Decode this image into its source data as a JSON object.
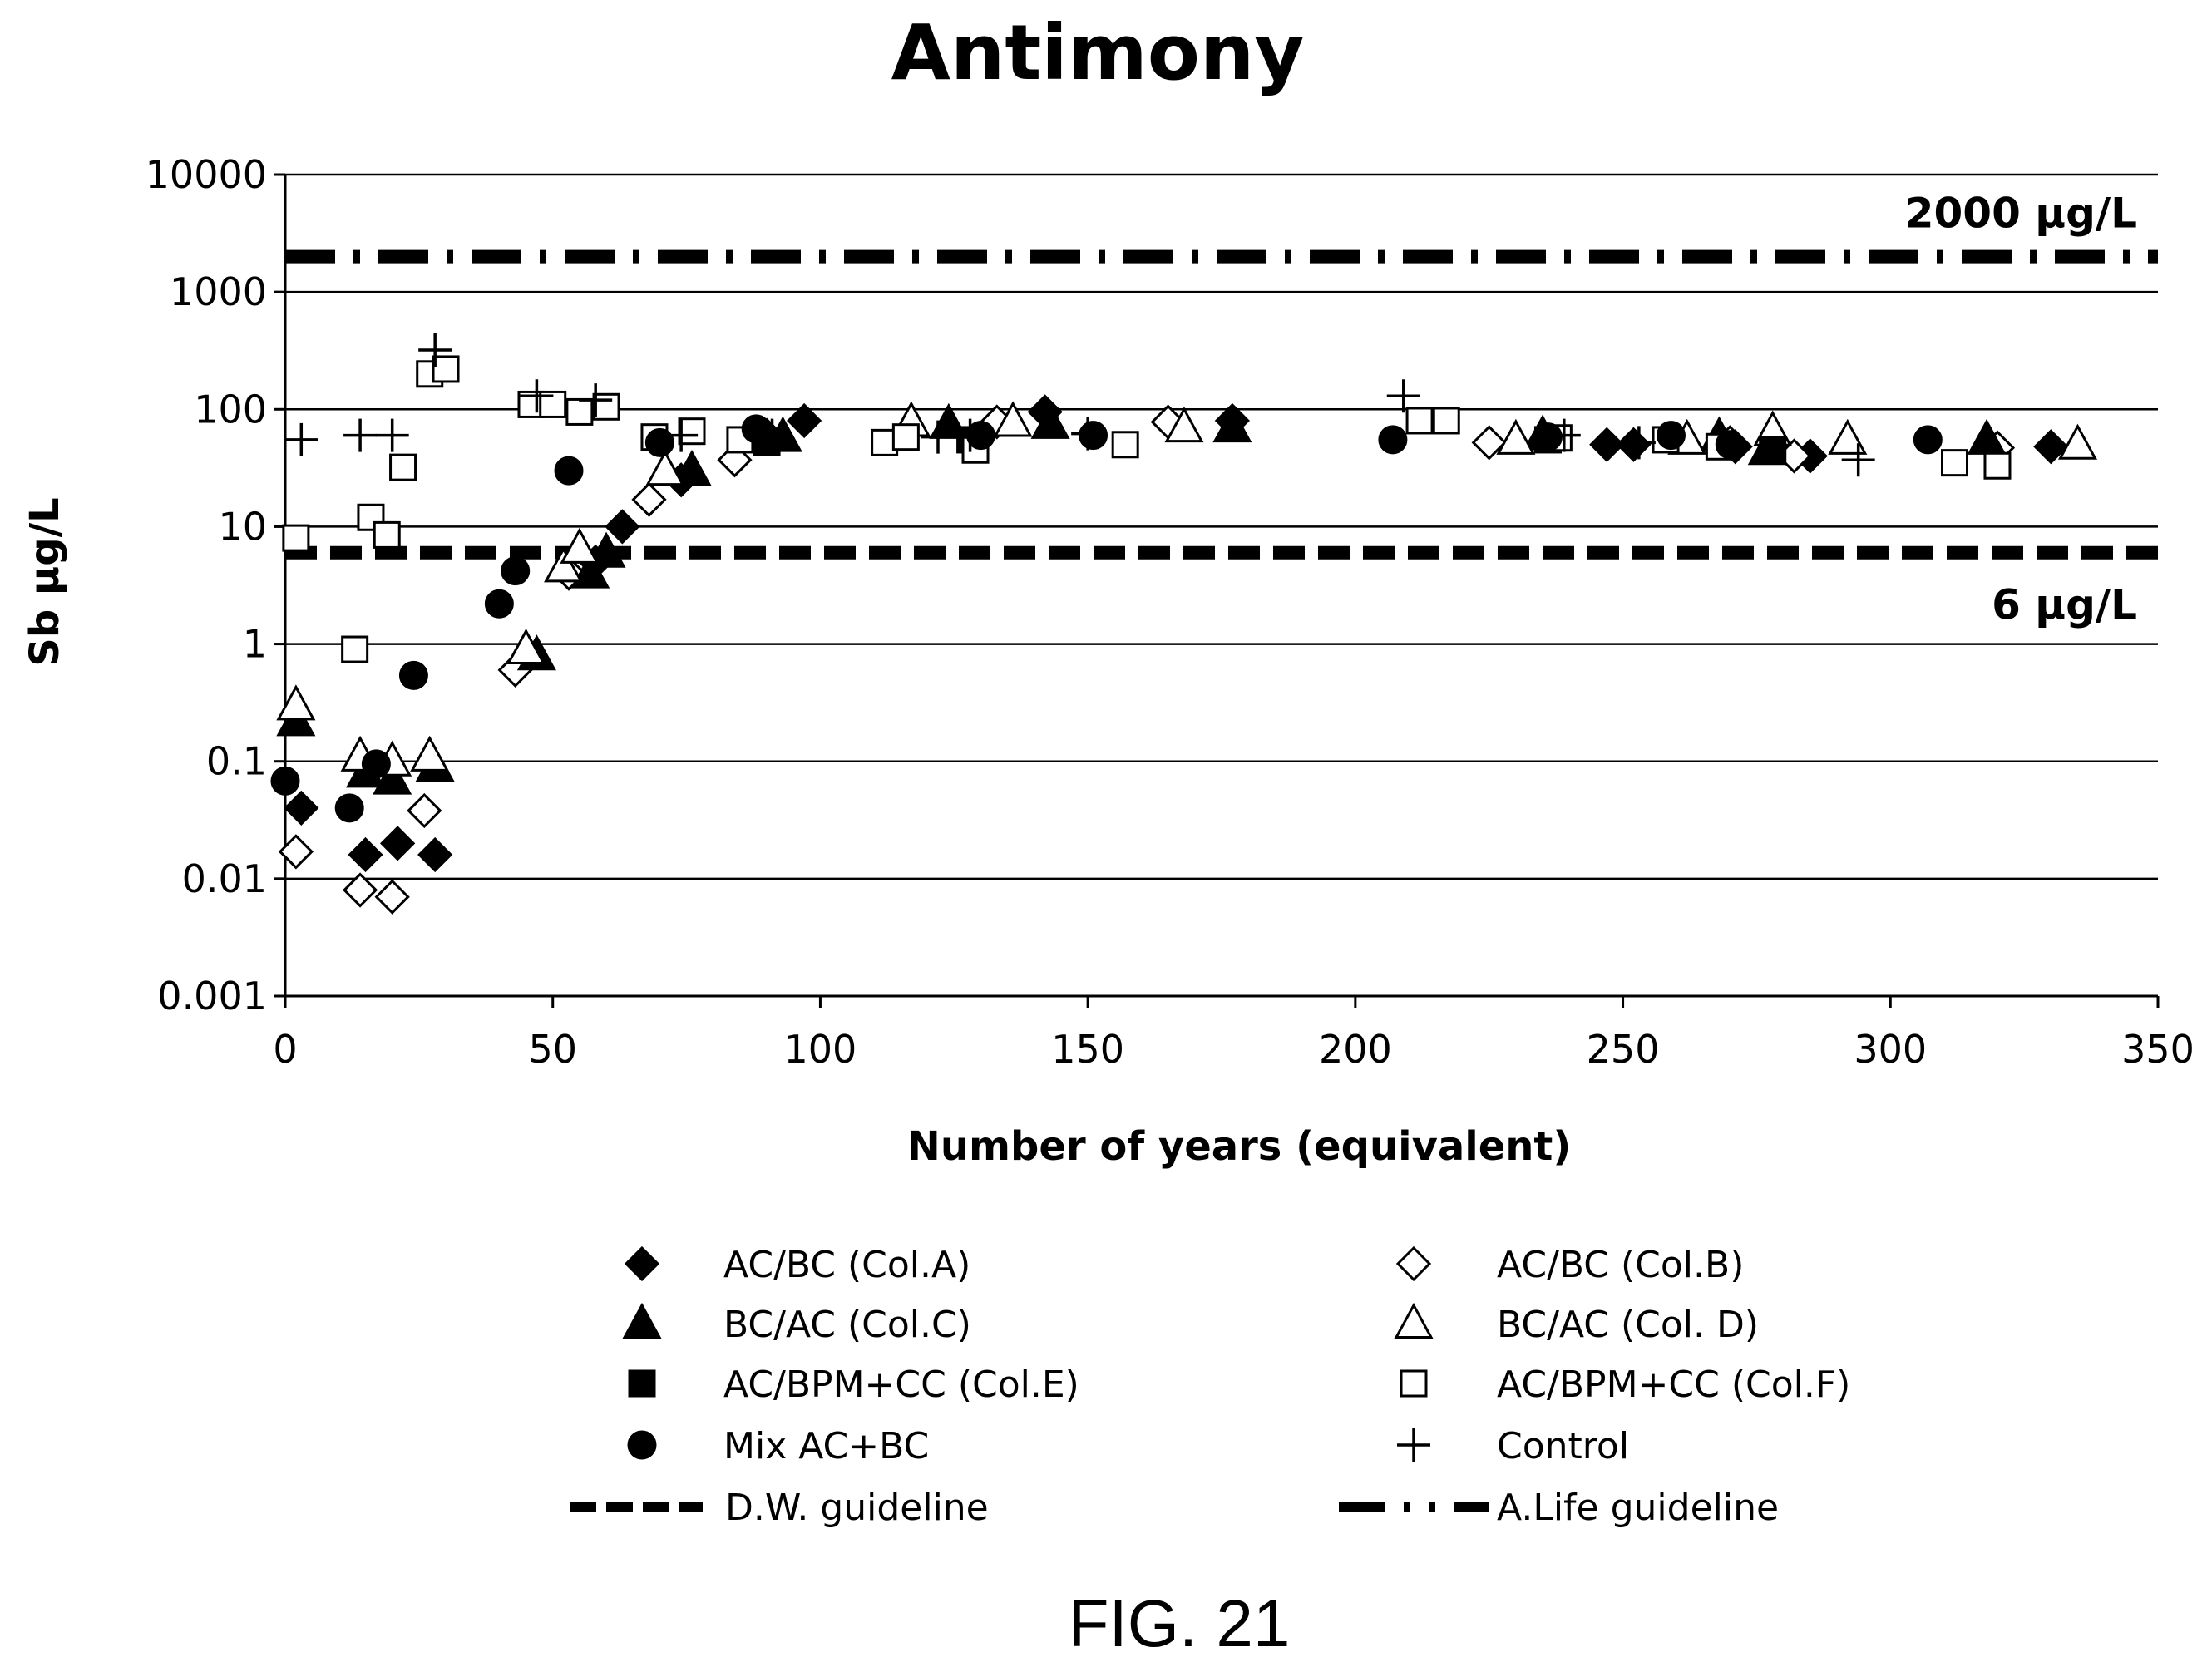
{
  "chart_data": {
    "type": "scatter",
    "title": "Antimony",
    "xlabel": "Number of years (equivalent)",
    "ylabel": "Sb µg/L",
    "xlim": [
      0,
      350
    ],
    "ylim": [
      0.001,
      10000
    ],
    "yscale": "log",
    "xticks": [
      "0",
      "50",
      "100",
      "150",
      "200",
      "250",
      "300",
      "350"
    ],
    "yticks": [
      "0.001",
      "0.01",
      "0.1",
      "1",
      "10",
      "100",
      "1000",
      "10000"
    ],
    "grid": "horizontal",
    "legend_placement": "bottom",
    "guidelines": [
      {
        "name": "D.W. guideline",
        "value": 6,
        "label": "6 µg/L",
        "style": "dashed"
      },
      {
        "name": "A.Life guideline",
        "value": 2000,
        "label": "2000 µg/L",
        "style": "dash-dot"
      }
    ],
    "series": [
      {
        "name": "AC/BC (Col.A)",
        "marker": "diamond-filled",
        "points": [
          [
            3,
            0.04
          ],
          [
            15,
            0.016
          ],
          [
            21,
            0.02
          ],
          [
            28,
            0.016
          ],
          [
            58,
            5
          ],
          [
            63,
            10
          ],
          [
            74,
            25
          ],
          [
            90,
            60
          ],
          [
            97,
            80
          ],
          [
            142,
            95
          ],
          [
            177,
            80
          ],
          [
            247,
            50
          ],
          [
            252,
            50
          ],
          [
            271,
            48
          ],
          [
            285,
            40
          ],
          [
            330,
            48
          ]
        ]
      },
      {
        "name": "AC/BC (Col.B)",
        "marker": "diamond-open",
        "points": [
          [
            2,
            0.017
          ],
          [
            14,
            0.008
          ],
          [
            20,
            0.007
          ],
          [
            26,
            0.038
          ],
          [
            43,
            0.6
          ],
          [
            53,
            4
          ],
          [
            68,
            17
          ],
          [
            84,
            37
          ],
          [
            133,
            78
          ],
          [
            165,
            78
          ],
          [
            225,
            52
          ],
          [
            270,
            52
          ],
          [
            282,
            40
          ],
          [
            320,
            47
          ]
        ]
      },
      {
        "name": "BC/AC (Col.C)",
        "marker": "triangle-filled",
        "points": [
          [
            2,
            0.22
          ],
          [
            15,
            0.08
          ],
          [
            20,
            0.07
          ],
          [
            28,
            0.09
          ],
          [
            47,
            0.8
          ],
          [
            57,
            4
          ],
          [
            60,
            6
          ],
          [
            76,
            30
          ],
          [
            93,
            58
          ],
          [
            124,
            75
          ],
          [
            143,
            75
          ],
          [
            177,
            70
          ],
          [
            235,
            60
          ],
          [
            268,
            58
          ],
          [
            277,
            45
          ],
          [
            318,
            55
          ]
        ]
      },
      {
        "name": "BC/AC (Col. D)",
        "marker": "triangle-open",
        "points": [
          [
            2,
            0.3
          ],
          [
            14,
            0.11
          ],
          [
            20,
            0.1
          ],
          [
            27,
            0.11
          ],
          [
            45,
            0.9
          ],
          [
            52,
            4.5
          ],
          [
            55,
            6.5
          ],
          [
            71,
            30
          ],
          [
            117,
            78
          ],
          [
            136,
            78
          ],
          [
            168,
            70
          ],
          [
            230,
            55
          ],
          [
            262,
            55
          ],
          [
            278,
            65
          ],
          [
            292,
            55
          ],
          [
            335,
            50
          ]
        ]
      },
      {
        "name": "AC/BPM+CC (Col.E)",
        "marker": "square-filled",
        "points": [
          [
            90,
            52
          ],
          [
            128,
            55
          ],
          [
            236,
            55
          ],
          [
            278,
            45
          ]
        ]
      },
      {
        "name": "AC/BPM+CC (Col.F)",
        "marker": "square-open",
        "points": [
          [
            2,
            8
          ],
          [
            13,
            0.9
          ],
          [
            16,
            12
          ],
          [
            19,
            8.5
          ],
          [
            22,
            32
          ],
          [
            27,
            200
          ],
          [
            30,
            220
          ],
          [
            46,
            110
          ],
          [
            50,
            110
          ],
          [
            55,
            95
          ],
          [
            60,
            105
          ],
          [
            69,
            58
          ],
          [
            76,
            65
          ],
          [
            85,
            55
          ],
          [
            112,
            52
          ],
          [
            116,
            58
          ],
          [
            129,
            45
          ],
          [
            157,
            50
          ],
          [
            212,
            80
          ],
          [
            217,
            80
          ],
          [
            238,
            57
          ],
          [
            258,
            55
          ],
          [
            268,
            48
          ],
          [
            312,
            35
          ],
          [
            320,
            33
          ]
        ]
      },
      {
        "name": "Mix AC+BC",
        "marker": "circle-filled",
        "points": [
          [
            0,
            0.068
          ],
          [
            12,
            0.04
          ],
          [
            17,
            0.095
          ],
          [
            24,
            0.54
          ],
          [
            40,
            2.2
          ],
          [
            43,
            4.2
          ],
          [
            53,
            30
          ],
          [
            70,
            52
          ],
          [
            88,
            68
          ],
          [
            130,
            60
          ],
          [
            151,
            60
          ],
          [
            207,
            55
          ],
          [
            236,
            58
          ],
          [
            259,
            60
          ],
          [
            270,
            50
          ],
          [
            307,
            55
          ]
        ]
      },
      {
        "name": "Control",
        "marker": "plus",
        "points": [
          [
            3,
            55
          ],
          [
            14,
            60
          ],
          [
            20,
            60
          ],
          [
            28,
            320
          ],
          [
            47,
            130
          ],
          [
            58,
            120
          ],
          [
            74,
            60
          ],
          [
            91,
            60
          ],
          [
            122,
            58
          ],
          [
            128,
            60
          ],
          [
            150,
            62
          ],
          [
            209,
            130
          ],
          [
            239,
            60
          ],
          [
            253,
            52
          ],
          [
            294,
            37
          ]
        ]
      }
    ]
  },
  "figure_label": "FIG. 21"
}
